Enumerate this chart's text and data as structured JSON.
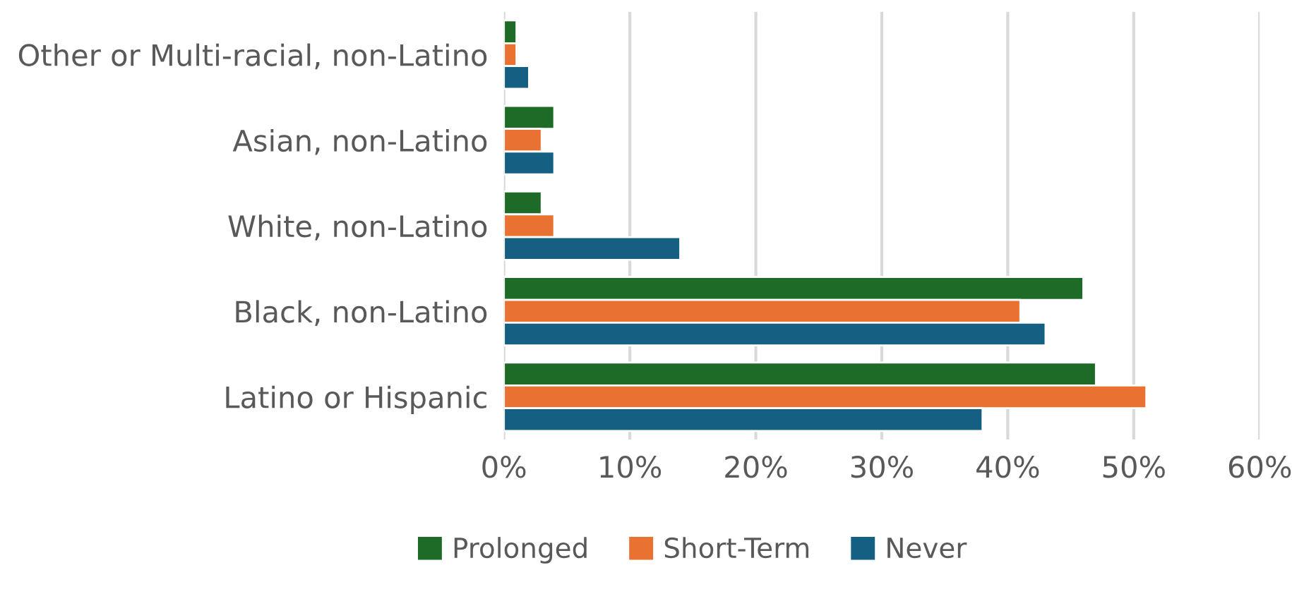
{
  "chart_data": {
    "type": "bar",
    "orientation": "horizontal",
    "categories": [
      "Other or Multi-racial, non-Latino",
      "Asian, non-Latino",
      "White, non-Latino",
      "Black, non-Latino",
      "Latino or Hispanic"
    ],
    "series": [
      {
        "name": "Prolonged",
        "color": "#1e6b27",
        "values": [
          1,
          4,
          3,
          46,
          47
        ]
      },
      {
        "name": "Short-Term",
        "color": "#e97132",
        "values": [
          1,
          3,
          4,
          41,
          51
        ]
      },
      {
        "name": "Never",
        "color": "#156082",
        "values": [
          2,
          4,
          14,
          43,
          38
        ]
      }
    ],
    "xlim": [
      0,
      60
    ],
    "xticks": [
      {
        "value": 0,
        "label": "0%"
      },
      {
        "value": 10,
        "label": "10%"
      },
      {
        "value": 20,
        "label": "20%"
      },
      {
        "value": 30,
        "label": "30%"
      },
      {
        "value": 40,
        "label": "40%"
      },
      {
        "value": 50,
        "label": "50%"
      },
      {
        "value": 60,
        "label": "60%"
      }
    ],
    "grid": "x",
    "legend": "bottom"
  }
}
